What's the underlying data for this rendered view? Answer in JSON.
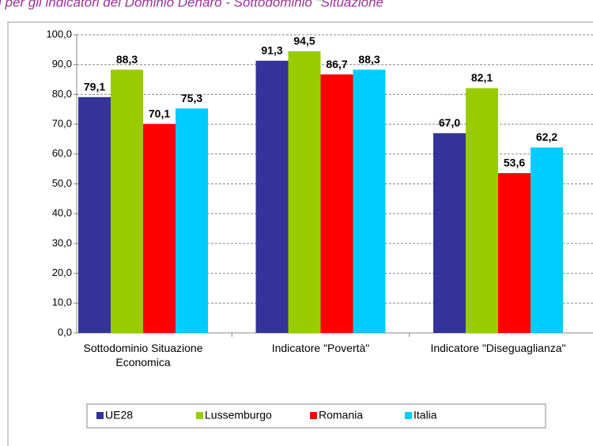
{
  "chart_data": {
    "type": "bar",
    "title": "i per gli indicatori del Dominio Denaro - Sottodominio \"Situazione",
    "categories": [
      "Sottodominio Situazione Economica",
      "Indicatore \"Povertà\"",
      "Indicatore \"Diseguaglianza\""
    ],
    "series": [
      {
        "name": "UE28",
        "color": "#333399",
        "values": [
          79.1,
          91.3,
          67.0
        ],
        "value_labels": [
          "79,1",
          "91,3",
          "67,0"
        ]
      },
      {
        "name": "Lussemburgo",
        "color": "#99cc00",
        "values": [
          88.3,
          94.5,
          82.1
        ],
        "value_labels": [
          "88,3",
          "94,5",
          "82,1"
        ]
      },
      {
        "name": "Romania",
        "color": "#ff0000",
        "values": [
          70.1,
          86.7,
          53.6
        ],
        "value_labels": [
          "70,1",
          "86,7",
          "53,6"
        ]
      },
      {
        "name": "Italia",
        "color": "#00ccff",
        "values": [
          75.3,
          88.3,
          62.2
        ],
        "value_labels": [
          "75,3",
          "88,3",
          "62,2"
        ]
      }
    ],
    "ylim": [
      0,
      100
    ],
    "yticks": [
      {
        "value": 0,
        "label": "0,0"
      },
      {
        "value": 10,
        "label": "10,0"
      },
      {
        "value": 20,
        "label": "20,0"
      },
      {
        "value": 30,
        "label": "30,0"
      },
      {
        "value": 40,
        "label": "40,0"
      },
      {
        "value": 50,
        "label": "50,0"
      },
      {
        "value": 60,
        "label": "60,0"
      },
      {
        "value": 70,
        "label": "70,0"
      },
      {
        "value": 80,
        "label": "80,0"
      },
      {
        "value": 90,
        "label": "90,0"
      },
      {
        "value": 100,
        "label": "100,0"
      }
    ],
    "grid": true,
    "legend": "bottom"
  }
}
